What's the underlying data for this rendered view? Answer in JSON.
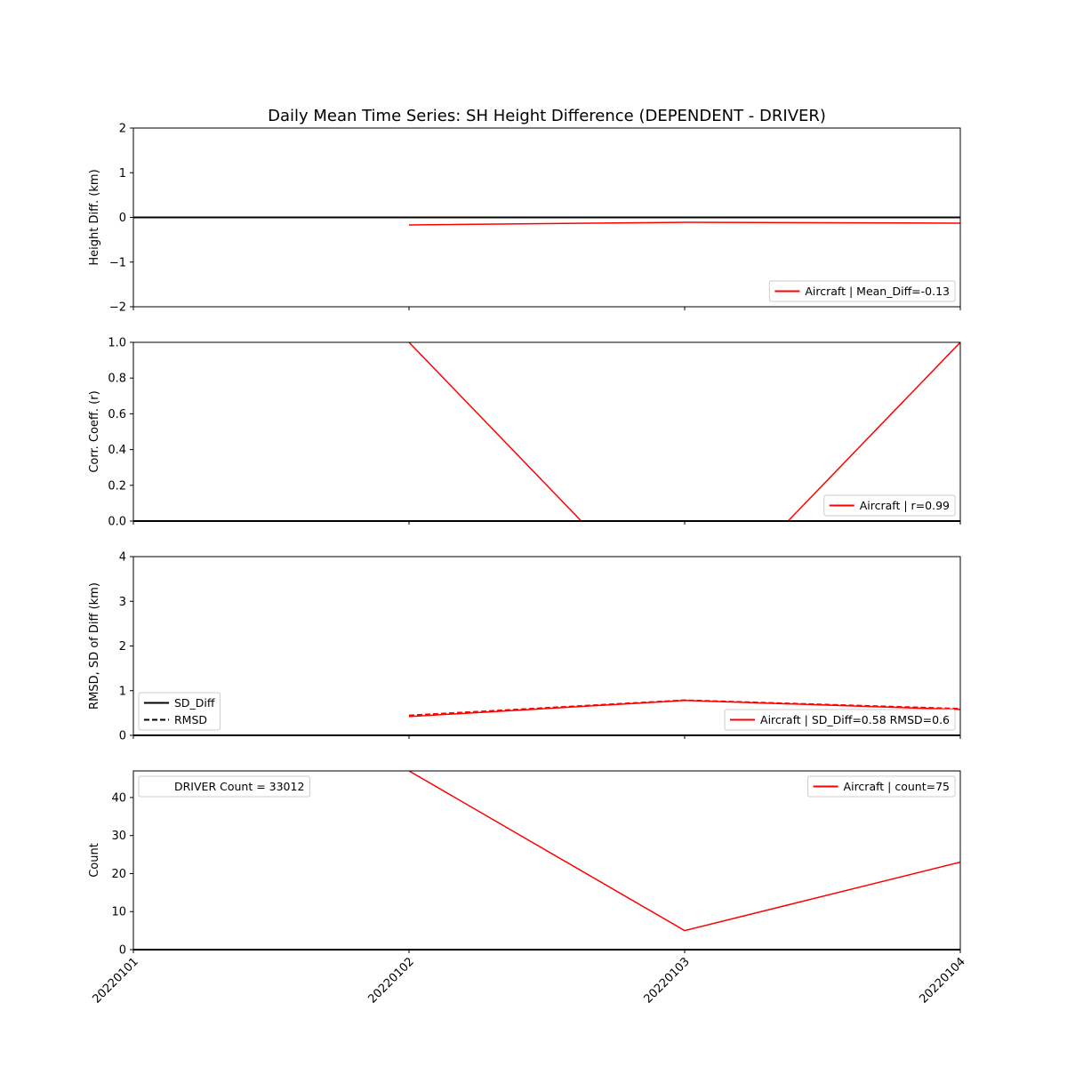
{
  "title": "Daily Mean Time Series: SH Height Difference (DEPENDENT - DRIVER)",
  "x_categories": [
    "20220101",
    "20220102",
    "20220103",
    "20220104"
  ],
  "chart_data": [
    {
      "type": "line",
      "ylabel": "Height Diff. (km)",
      "ylim": [
        -2,
        2
      ],
      "yticks": [
        -2,
        -1,
        0,
        1,
        2
      ],
      "reference_line": {
        "y": 0,
        "color": "#000000"
      },
      "series": [
        {
          "name": "Aircraft | Mean_Diff=-0.13",
          "color": "#ff0000",
          "style": "solid",
          "values": [
            null,
            -0.17,
            -0.11,
            -0.13
          ]
        }
      ],
      "legends": [
        {
          "position": "lower-right",
          "entries": [
            {
              "label": "Aircraft | Mean_Diff=-0.13",
              "color": "#ff0000",
              "style": "solid"
            }
          ]
        }
      ]
    },
    {
      "type": "line",
      "ylabel": "Corr. Coeff. (r)",
      "ylim": [
        0,
        1
      ],
      "yticks": [
        0.0,
        0.2,
        0.4,
        0.6,
        0.8,
        1.0
      ],
      "reference_line": {
        "y": 0,
        "color": "#000000"
      },
      "series": [
        {
          "name": "Aircraft | r=0.99",
          "color": "#ff0000",
          "style": "solid",
          "values": [
            null,
            1.0,
            -0.6,
            1.0
          ]
        }
      ],
      "legends": [
        {
          "position": "lower-right",
          "entries": [
            {
              "label": "Aircraft | r=0.99",
              "color": "#ff0000",
              "style": "solid"
            }
          ]
        }
      ]
    },
    {
      "type": "line",
      "ylabel": "RMSD, SD of Diff (km)",
      "ylim": [
        0,
        4
      ],
      "yticks": [
        0,
        1,
        2,
        3,
        4
      ],
      "reference_line": {
        "y": 0,
        "color": "#000000"
      },
      "series": [
        {
          "name": "SD_Diff",
          "color": "#ff0000",
          "style": "solid",
          "values": [
            null,
            0.42,
            0.78,
            0.58
          ]
        },
        {
          "name": "RMSD",
          "color": "#ff0000",
          "style": "dashed",
          "values": [
            null,
            0.45,
            0.79,
            0.6
          ]
        }
      ],
      "legends": [
        {
          "position": "lower-left",
          "entries": [
            {
              "label": "SD_Diff",
              "color": "#000000",
              "style": "solid"
            },
            {
              "label": "RMSD",
              "color": "#000000",
              "style": "dashed"
            }
          ]
        },
        {
          "position": "lower-right",
          "entries": [
            {
              "label": "Aircraft | SD_Diff=0.58 RMSD=0.6",
              "color": "#ff0000",
              "style": "solid"
            }
          ]
        }
      ]
    },
    {
      "type": "line",
      "ylabel": "Count",
      "ylim": [
        0,
        47
      ],
      "yticks": [
        0,
        10,
        20,
        30,
        40
      ],
      "reference_line": {
        "y": 0,
        "color": "#000000"
      },
      "series": [
        {
          "name": "Aircraft | count=75",
          "color": "#ff0000",
          "style": "solid",
          "values": [
            null,
            47,
            5,
            23
          ]
        }
      ],
      "legends": [
        {
          "position": "upper-left",
          "entries": [
            {
              "label": "DRIVER Count = 33012",
              "color": "none",
              "style": "none"
            }
          ]
        },
        {
          "position": "upper-right",
          "entries": [
            {
              "label": "Aircraft | count=75",
              "color": "#ff0000",
              "style": "solid"
            }
          ]
        }
      ]
    }
  ]
}
